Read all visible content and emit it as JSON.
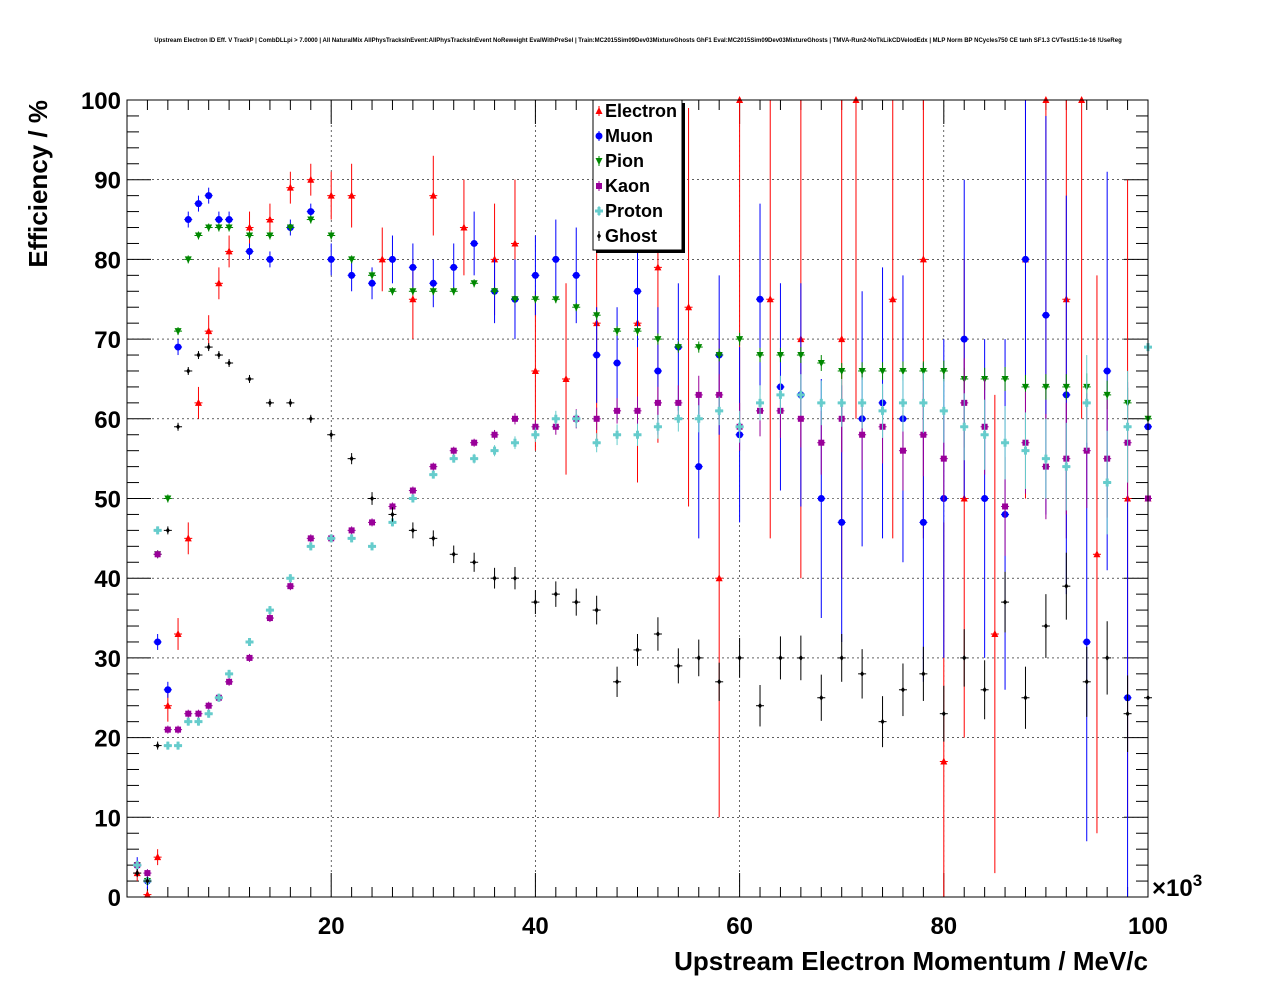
{
  "chart_data": {
    "type": "scatter",
    "title": "Upstream Electron ID Eff. V TrackP | CombDLLpi > 7.0000 | All NaturalMix AllPhysTracksInEvent:AllPhysTracksInEvent NoReweight EvalWithPreSel | Train:MC2015Sim09Dev03MixtureGhosts GhF1 Eval:MC2015Sim09Dev03MixtureGhosts | TMVA-Run2-NoTkLikCDVelodEdx | MLP Norm BP NCycles750 CE tanh SF1.3 CVTest15:1e-16 !UseReg",
    "xlabel": "Upstream Electron Momentum / MeV/c",
    "ylabel": "Efficiency / %",
    "x_exponent_label": "×10",
    "x_exponent_power": "3",
    "xlim": [
      0,
      100
    ],
    "ylim": [
      0,
      100
    ],
    "x_ticks": [
      20,
      40,
      60,
      80,
      100
    ],
    "y_ticks": [
      0,
      10,
      20,
      30,
      40,
      50,
      60,
      70,
      80,
      90,
      100
    ],
    "x_tick_labels": [
      "20",
      "40",
      "60",
      "80",
      "100"
    ],
    "y_tick_labels": [
      "0",
      "10",
      "20",
      "30",
      "40",
      "50",
      "60",
      "70",
      "80",
      "90",
      "100"
    ],
    "grid": true,
    "legend_position": "top-center",
    "series": [
      {
        "name": "Electron",
        "color": "#ff0000",
        "marker": "triangle-up",
        "x": [
          1,
          2,
          3,
          4,
          5,
          6,
          7,
          8,
          9,
          10,
          12,
          14,
          16,
          18,
          20,
          22,
          25,
          28,
          30,
          33,
          36,
          38,
          40,
          43,
          46,
          50,
          52,
          55,
          58,
          60,
          63,
          66,
          70,
          71.4,
          75,
          78,
          80,
          82,
          85,
          88,
          90,
          92,
          93.5,
          95,
          98,
          100
        ],
        "y": [
          3,
          0.3,
          5,
          24,
          33,
          45,
          62,
          71,
          77,
          81,
          84,
          85,
          89,
          90,
          88,
          88,
          80,
          75,
          88,
          84,
          80,
          82,
          66,
          65,
          72,
          72,
          79,
          74,
          40,
          100,
          75,
          70,
          70,
          100,
          75,
          80,
          17,
          50,
          33,
          80,
          100,
          75,
          100,
          43,
          50,
          50
        ],
        "err": [
          1,
          0.5,
          1,
          2,
          2,
          2,
          2,
          2,
          2,
          2,
          2,
          2,
          2,
          2,
          3,
          4,
          4,
          5,
          5,
          6,
          7,
          8,
          10,
          12,
          15,
          20,
          22,
          25,
          30,
          40,
          30,
          30,
          30,
          40,
          30,
          35,
          30,
          30,
          30,
          30,
          40,
          30,
          40,
          35,
          40,
          40
        ]
      },
      {
        "name": "Muon",
        "color": "#0000ff",
        "marker": "circle",
        "x": [
          1,
          2,
          3,
          4,
          5,
          6,
          7,
          8,
          9,
          10,
          12,
          14,
          16,
          18,
          20,
          22,
          24,
          26,
          28,
          30,
          32,
          34,
          36,
          38,
          40,
          42,
          44,
          46,
          48,
          50,
          52,
          54,
          56,
          58,
          60,
          62,
          64,
          66,
          68,
          70,
          72,
          74,
          76,
          78,
          80,
          82,
          84,
          86,
          88,
          90,
          92,
          94,
          96,
          98,
          100
        ],
        "y": [
          4,
          2,
          32,
          26,
          69,
          85,
          87,
          88,
          85,
          85,
          81,
          80,
          84,
          86,
          80,
          78,
          77,
          80,
          79,
          77,
          79,
          82,
          76,
          75,
          78,
          80,
          78,
          68,
          67,
          76,
          66,
          69,
          54,
          68,
          58,
          75,
          64,
          63,
          50,
          47,
          60,
          62,
          60,
          47,
          50,
          70,
          50,
          48,
          80,
          73,
          63,
          32,
          66,
          25,
          59
        ],
        "err": [
          1,
          1,
          1,
          1,
          1,
          1,
          1,
          1,
          1,
          1,
          1,
          1,
          1,
          1,
          2,
          2,
          2,
          3,
          3,
          3,
          3,
          4,
          4,
          5,
          5,
          5,
          6,
          6,
          7,
          7,
          8,
          8,
          9,
          10,
          11,
          12,
          13,
          14,
          15,
          15,
          16,
          17,
          18,
          20,
          20,
          20,
          20,
          22,
          22,
          25,
          25,
          25,
          25,
          25,
          25
        ]
      },
      {
        "name": "Pion",
        "color": "#008800",
        "marker": "triangle-down",
        "x": [
          1,
          2,
          3,
          4,
          5,
          6,
          7,
          8,
          9,
          10,
          12,
          14,
          16,
          18,
          20,
          22,
          24,
          26,
          28,
          30,
          32,
          34,
          36,
          38,
          40,
          42,
          44,
          46,
          48,
          50,
          52,
          54,
          56,
          58,
          60,
          62,
          64,
          66,
          68,
          70,
          72,
          74,
          76,
          78,
          80,
          82,
          84,
          86,
          88,
          90,
          92,
          94,
          96,
          98,
          100
        ],
        "y": [
          4,
          2,
          43,
          50,
          71,
          80,
          83,
          84,
          84,
          84,
          83,
          83,
          84,
          85,
          83,
          80,
          78,
          76,
          76,
          76,
          76,
          77,
          76,
          75,
          75,
          75,
          74,
          73,
          71,
          71,
          70,
          69,
          69,
          68,
          70,
          68,
          68,
          68,
          67,
          66,
          66,
          66,
          66,
          66,
          66,
          65,
          65,
          65,
          64,
          64,
          64,
          64,
          63,
          62,
          60
        ],
        "err": [
          0.5,
          0.5,
          0.5,
          0.5,
          0.5,
          0.5,
          0.5,
          0.5,
          0.5,
          0.5,
          0.5,
          0.5,
          0.5,
          0.5,
          0.5,
          0.5,
          0.5,
          0.5,
          0.5,
          0.5,
          0.5,
          0.5,
          0.5,
          0.5,
          0.5,
          0.5,
          0.5,
          0.6,
          0.6,
          0.6,
          0.7,
          0.7,
          0.7,
          0.8,
          0.8,
          0.9,
          0.9,
          1,
          1,
          1,
          1.1,
          1.1,
          1.2,
          1.2,
          1.3,
          1.4,
          1.4,
          1.5,
          1.5,
          1.6,
          1.6,
          1.7,
          1.8,
          1.9,
          2
        ]
      },
      {
        "name": "Kaon",
        "color": "#990099",
        "marker": "square",
        "x": [
          1,
          2,
          3,
          4,
          5,
          6,
          7,
          8,
          9,
          10,
          12,
          14,
          16,
          18,
          20,
          22,
          24,
          26,
          28,
          30,
          32,
          34,
          36,
          38,
          40,
          42,
          44,
          46,
          48,
          50,
          52,
          54,
          56,
          58,
          60,
          62,
          64,
          66,
          68,
          70,
          72,
          74,
          76,
          78,
          80,
          82,
          84,
          86,
          88,
          90,
          92,
          94,
          96,
          98,
          100
        ],
        "y": [
          4,
          3,
          43,
          21,
          21,
          23,
          23,
          24,
          25,
          27,
          30,
          35,
          39,
          45,
          45,
          46,
          47,
          49,
          51,
          54,
          56,
          57,
          58,
          60,
          59,
          59,
          60,
          60,
          61,
          61,
          62,
          62,
          63,
          63,
          59,
          61,
          61,
          60,
          57,
          60,
          58,
          59,
          56,
          58,
          55,
          62,
          59,
          49,
          57,
          54,
          55,
          56,
          55,
          57,
          50
        ],
        "err": [
          0.5,
          0.5,
          0.5,
          0.5,
          0.5,
          0.5,
          0.5,
          0.5,
          0.5,
          0.5,
          0.5,
          0.5,
          0.5,
          0.5,
          0.5,
          0.5,
          0.5,
          0.5,
          0.5,
          0.5,
          0.5,
          0.5,
          0.6,
          0.7,
          0.8,
          1,
          1.2,
          1.4,
          1.6,
          1.8,
          2,
          2.2,
          2.4,
          2.6,
          3,
          3.2,
          3.4,
          3.6,
          4,
          4.2,
          4.4,
          4.6,
          5,
          5.2,
          5.4,
          5.6,
          6,
          6.2,
          6.4,
          6.6,
          7,
          7.2,
          7.4,
          7.6,
          8
        ]
      },
      {
        "name": "Proton",
        "color": "#66cccc",
        "marker": "cross",
        "x": [
          1,
          2,
          3,
          4,
          5,
          6,
          7,
          8,
          9,
          10,
          12,
          14,
          16,
          18,
          20,
          22,
          24,
          26,
          28,
          30,
          32,
          34,
          36,
          38,
          40,
          42,
          44,
          46,
          48,
          50,
          52,
          54,
          56,
          58,
          60,
          62,
          64,
          66,
          68,
          70,
          72,
          74,
          76,
          78,
          80,
          82,
          84,
          86,
          88,
          90,
          92,
          94,
          96,
          98,
          100
        ],
        "y": [
          4,
          2,
          46,
          19,
          19,
          22,
          22,
          23,
          25,
          28,
          32,
          36,
          40,
          44,
          45,
          45,
          44,
          47,
          50,
          53,
          55,
          55,
          56,
          57,
          58,
          60,
          60,
          57,
          58,
          58,
          59,
          60,
          60,
          61,
          59,
          62,
          63,
          63,
          62,
          62,
          62,
          61,
          62,
          62,
          61,
          59,
          58,
          57,
          56,
          55,
          54,
          62,
          52,
          59,
          69
        ],
        "err": [
          0.5,
          0.5,
          0.5,
          0.5,
          0.5,
          0.5,
          0.5,
          0.5,
          0.5,
          0.5,
          0.5,
          0.5,
          0.5,
          0.5,
          0.5,
          0.5,
          0.5,
          0.5,
          0.5,
          0.5,
          0.5,
          0.6,
          0.7,
          0.8,
          0.9,
          1,
          1.1,
          1.2,
          1.3,
          1.4,
          1.5,
          1.6,
          1.7,
          1.8,
          2,
          2.2,
          2.4,
          2.6,
          2.8,
          3,
          3.2,
          3.4,
          3.6,
          3.8,
          4,
          4.2,
          4.4,
          4.6,
          4.8,
          5,
          5.5,
          6,
          6.5,
          7,
          8
        ]
      },
      {
        "name": "Ghost",
        "color": "#000000",
        "marker": "diamond",
        "x": [
          1,
          2,
          3,
          4,
          5,
          6,
          7,
          8,
          9,
          10,
          12,
          14,
          16,
          18,
          20,
          22,
          24,
          26,
          28,
          30,
          32,
          34,
          36,
          38,
          40,
          42,
          44,
          46,
          48,
          50,
          52,
          54,
          56,
          58,
          60,
          62,
          64,
          66,
          68,
          70,
          72,
          74,
          76,
          78,
          80,
          82,
          84,
          86,
          88,
          90,
          92,
          94,
          96,
          98,
          100
        ],
        "y": [
          3,
          2,
          19,
          46,
          59,
          66,
          68,
          69,
          68,
          67,
          65,
          62,
          62,
          60,
          58,
          55,
          50,
          48,
          46,
          45,
          43,
          42,
          40,
          40,
          37,
          38,
          37,
          36,
          27,
          31,
          33,
          29,
          30,
          27,
          30,
          24,
          30,
          30,
          25,
          30,
          28,
          22,
          26,
          28,
          23,
          30,
          26,
          37,
          25,
          34,
          39,
          27,
          30,
          23,
          25
        ],
        "err": [
          0.5,
          0.5,
          0.5,
          0.5,
          0.5,
          0.5,
          0.5,
          0.5,
          0.5,
          0.5,
          0.5,
          0.5,
          0.5,
          0.5,
          0.6,
          0.7,
          0.8,
          0.9,
          1,
          1,
          1.1,
          1.2,
          1.3,
          1.4,
          1.5,
          1.6,
          1.7,
          1.8,
          1.9,
          2,
          2.1,
          2.2,
          2.3,
          2.4,
          2.5,
          2.6,
          2.7,
          2.8,
          2.9,
          3,
          3.1,
          3.2,
          3.3,
          3.4,
          3.5,
          3.6,
          3.7,
          3.8,
          3.9,
          4,
          4.2,
          4.4,
          4.6,
          4.8,
          5
        ]
      }
    ]
  }
}
